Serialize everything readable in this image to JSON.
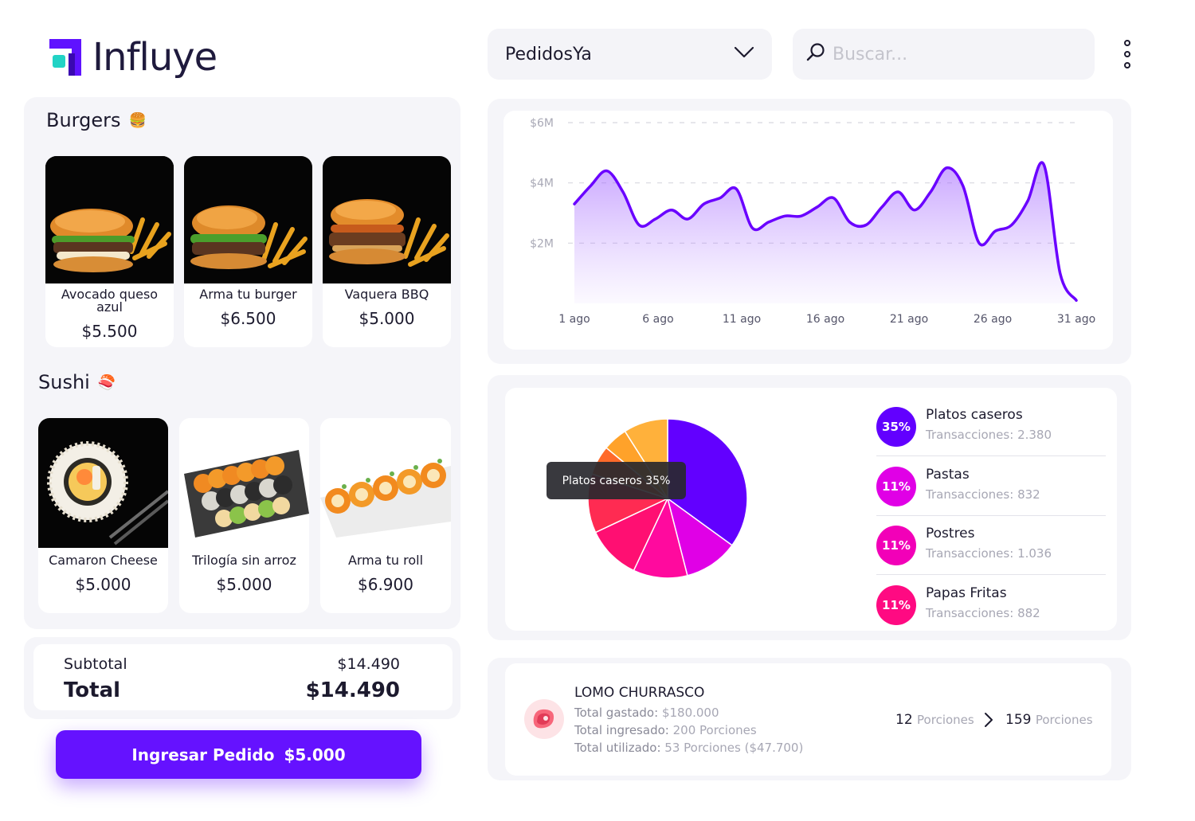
{
  "app": {
    "name": "Influye"
  },
  "header": {
    "store_select": {
      "value": "PedidosYa"
    },
    "search": {
      "placeholder": "Buscar..."
    }
  },
  "menu": {
    "categories": [
      {
        "title": "Burgers",
        "emoji": "🍔",
        "items": [
          {
            "name": "Avocado queso azul",
            "price": "$5.500"
          },
          {
            "name": "Arma tu burger",
            "price": "$6.500"
          },
          {
            "name": "Vaquera BBQ",
            "price": "$5.000"
          }
        ]
      },
      {
        "title": "Sushi",
        "emoji": "🍣",
        "items": [
          {
            "name": "Camaron Cheese",
            "price": "$5.000"
          },
          {
            "name": "Trilogía sin arroz",
            "price": "$5.000"
          },
          {
            "name": "Arma tu roll",
            "price": "$6.900"
          }
        ]
      }
    ]
  },
  "order": {
    "subtotal_label": "Subtotal",
    "subtotal_value": "$14.490",
    "total_label": "Total",
    "total_value": "$14.490",
    "cta_label": "Ingresar Pedido",
    "cta_amount": "$5.000"
  },
  "chart_data": [
    {
      "type": "area",
      "x_ticks": [
        "1 ago",
        "6 ago",
        "11 ago",
        "16 ago",
        "21 ago",
        "26 ago",
        "31 ago"
      ],
      "y_ticks": [
        "$2M",
        "$4M",
        "$6M"
      ],
      "ylim": [
        0,
        6
      ],
      "x": [
        1,
        2,
        3,
        4,
        5,
        6,
        7,
        8,
        9,
        10,
        11,
        12,
        13,
        14,
        15,
        16,
        17,
        18,
        19,
        20,
        21,
        22,
        23,
        24,
        25,
        26,
        27,
        28,
        29,
        30,
        31,
        32
      ],
      "values": [
        3.3,
        3.9,
        4.4,
        3.7,
        2.6,
        2.8,
        3.1,
        2.8,
        3.3,
        3.5,
        3.8,
        2.5,
        2.7,
        2.9,
        2.9,
        3.2,
        3.5,
        2.7,
        2.6,
        3.2,
        3.7,
        3.1,
        3.7,
        4.5,
        3.9,
        2.0,
        2.4,
        2.6,
        3.4,
        4.6,
        1.0,
        0.1
      ],
      "grid": "dashed-horizontal",
      "color": "#6a00ff"
    },
    {
      "type": "pie",
      "slices": [
        {
          "value": 35,
          "color": "#6200ff"
        },
        {
          "value": 11,
          "color": "#e000e6"
        },
        {
          "value": 11,
          "color": "#ff0a9e"
        },
        {
          "value": 11,
          "color": "#ff0f72"
        },
        {
          "value": 12,
          "color": "#ff2b52"
        },
        {
          "value": 6,
          "color": "#ff6a2a"
        },
        {
          "value": 5,
          "color": "#ffa22a"
        },
        {
          "value": 9,
          "color": "#ffb13b"
        }
      ],
      "tooltip": "Platos caseros 35%"
    }
  ],
  "legend": [
    {
      "pct": "35%",
      "name": "Platos caseros",
      "tx_label": "Transacciones:",
      "tx_value": "2.380",
      "color": "#6200ff"
    },
    {
      "pct": "11%",
      "name": "Pastas",
      "tx_label": "Transacciones:",
      "tx_value": "832",
      "color": "#e000e6"
    },
    {
      "pct": "11%",
      "name": "Postres",
      "tx_label": "Transacciones:",
      "tx_value": "1.036",
      "color": "#f200b8"
    },
    {
      "pct": "11%",
      "name": "Papas Fritas",
      "tx_label": "Transacciones:",
      "tx_value": "882",
      "color": "#ff0a82"
    }
  ],
  "ingredient": {
    "icon": "steak-icon",
    "name": "LOMO CHURRASCO",
    "spent_label": "Total gastado:",
    "spent_value": "$180.000",
    "in_label": "Total ingresado:",
    "in_value": "200 Porciones",
    "used_label": "Total utilizado:",
    "used_value": "53 Porciones ($47.700)",
    "from_qty": "12",
    "from_unit": "Porciones",
    "to_qty": "159",
    "to_unit": "Porciones"
  },
  "colors": {
    "accent": "#6512ff",
    "panel": "#f5f5f9"
  }
}
